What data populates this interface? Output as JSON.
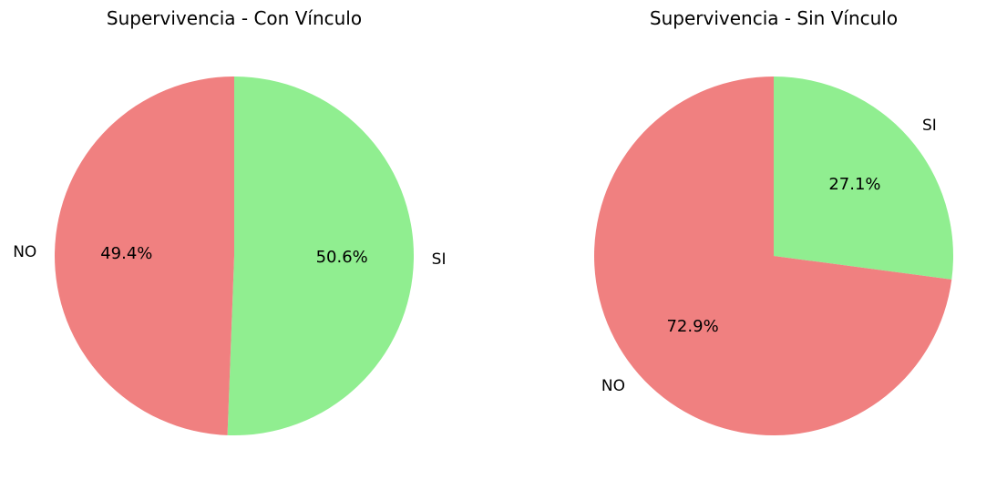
{
  "chart_data": [
    {
      "type": "pie",
      "title": "Supervivencia - Con Vínculo",
      "categories": [
        "SI",
        "NO"
      ],
      "values": [
        50.6,
        49.4
      ],
      "value_labels": [
        "50.6%",
        "49.4%"
      ],
      "colors": [
        "#90ee90",
        "#f08080"
      ],
      "start_angle_deg": 90,
      "direction": "clockwise",
      "legend": "none"
    },
    {
      "type": "pie",
      "title": "Supervivencia - Sin Vínculo",
      "categories": [
        "SI",
        "NO"
      ],
      "values": [
        27.1,
        72.9
      ],
      "value_labels": [
        "27.1%",
        "72.9%"
      ],
      "colors": [
        "#90ee90",
        "#f08080"
      ],
      "start_angle_deg": 90,
      "direction": "clockwise",
      "legend": "none"
    }
  ]
}
